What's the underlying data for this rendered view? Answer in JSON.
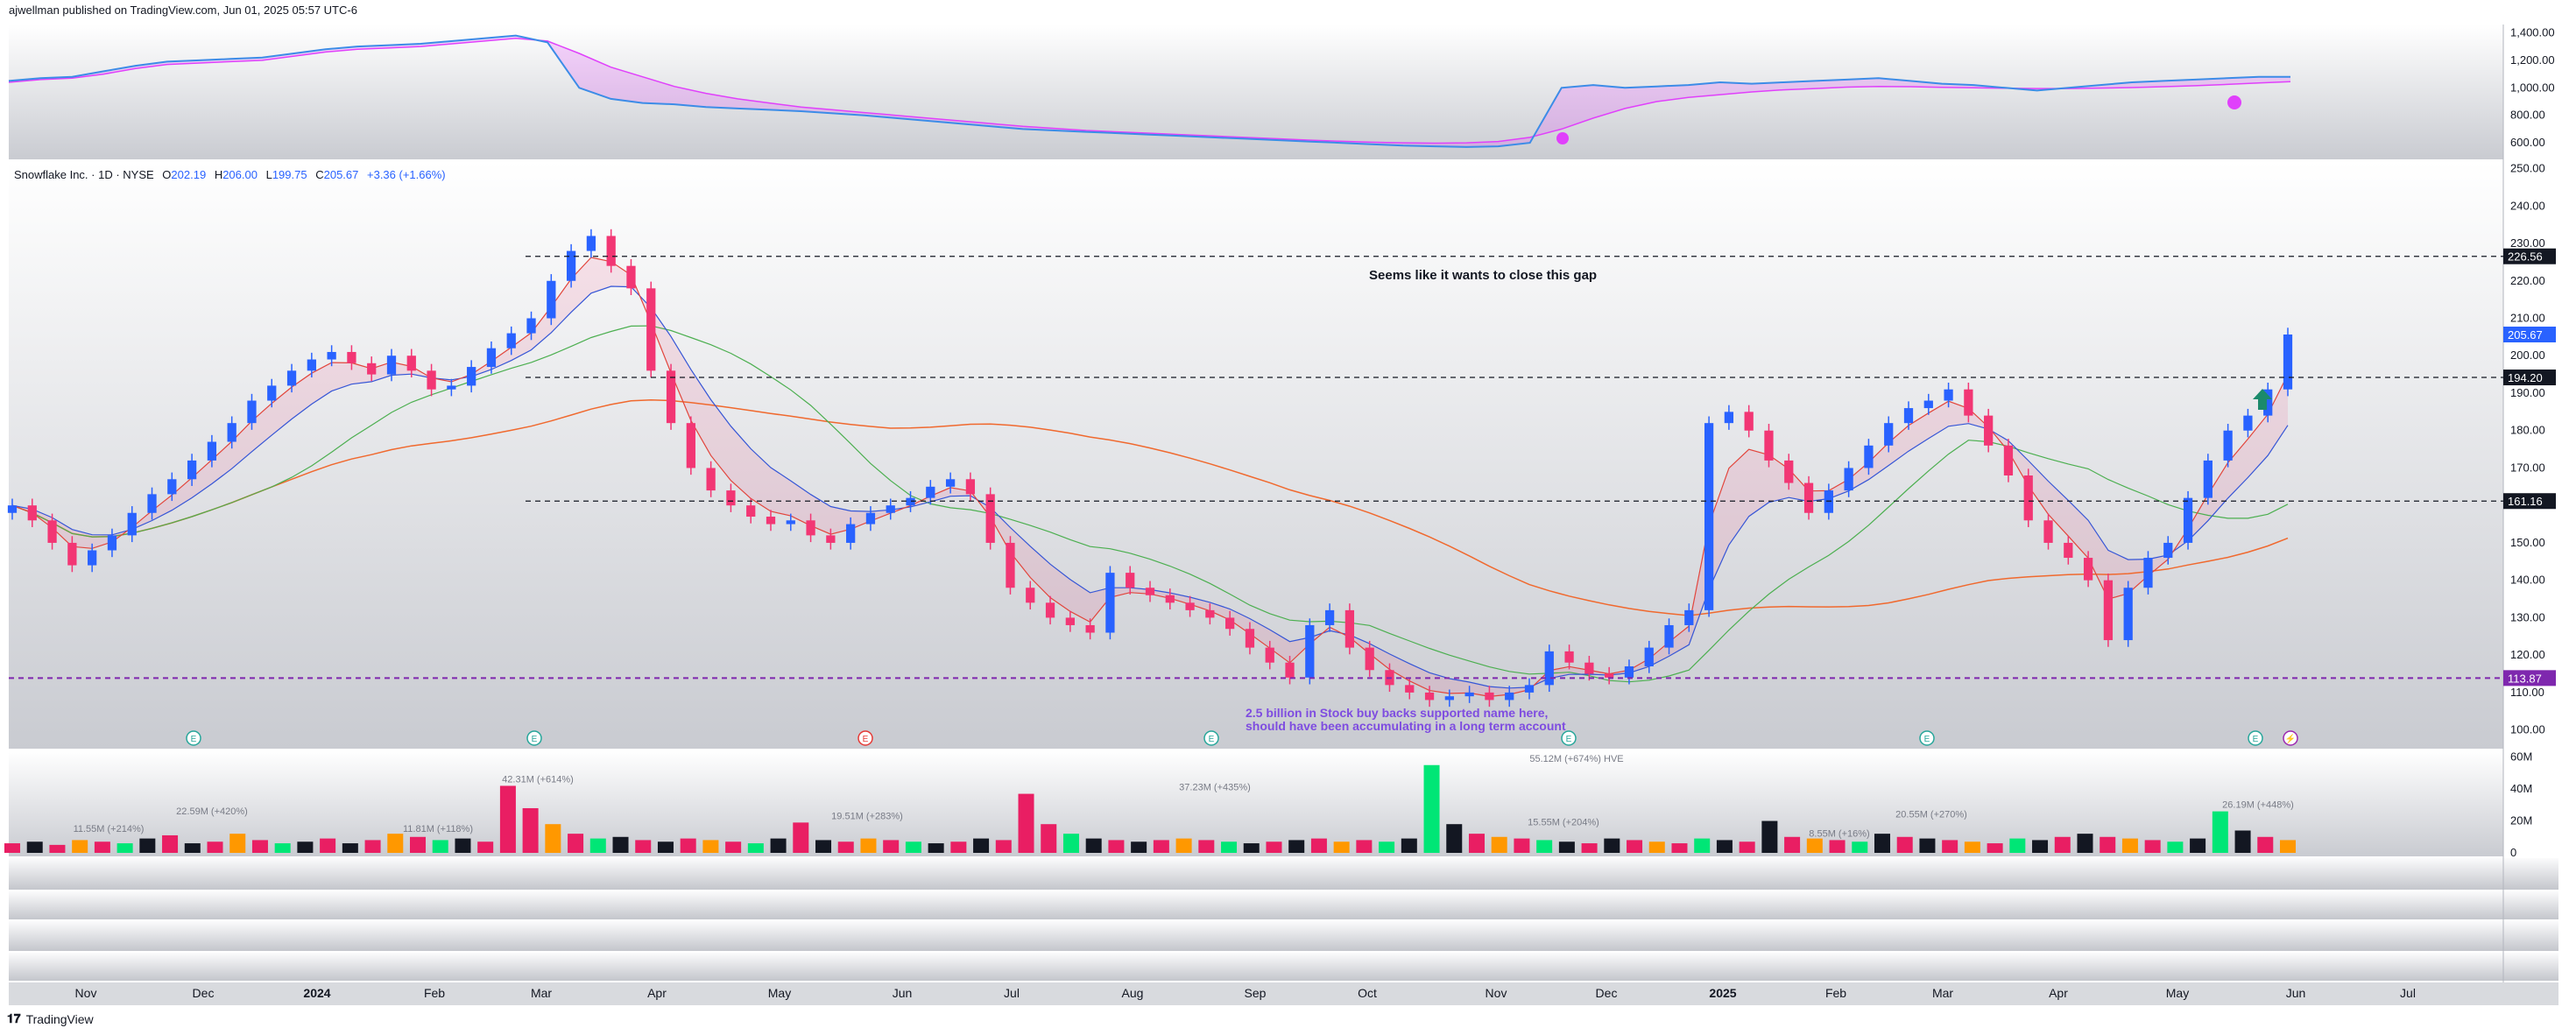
{
  "header": {
    "published": "ajwellman published on TradingView.com, Jun 01, 2025 05:57 UTC-6"
  },
  "footer": {
    "brand": "TradingView"
  },
  "legend": {
    "symbol": "Snowflake Inc. · 1D · NYSE",
    "o_label": "O",
    "o": "202.19",
    "h_label": "H",
    "h": "206.00",
    "l_label": "L",
    "l": "199.75",
    "c_label": "C",
    "c": "205.67",
    "change": "+3.36 (+1.66%)"
  },
  "annotations": {
    "gap_note": "Seems like it wants to close this gap",
    "buyback_line1": "2.5 billion in Stock buy backs supported name here,",
    "buyback_line2": "should have been accumulating in a long term account"
  },
  "colors": {
    "up": "#2962ff",
    "down": "#f23674",
    "ema_fast": "#e2453c",
    "ema_mid": "#3656d6",
    "sma_50": "#4caf50",
    "sma_200": "#f0692e",
    "accent": "#7e27ae",
    "top_pane_line": "#3c8ce7",
    "top_pane_ma": "#e040fb"
  },
  "chart_data": [
    {
      "type": "line",
      "title": "",
      "y_ticks": [
        "1,400.00",
        "1,200.00",
        "1,000.00",
        "800.00",
        "600.00"
      ],
      "ylim": [
        480,
        1460
      ],
      "series": [
        {
          "values": [
            1050,
            1070,
            1080,
            1120,
            1160,
            1190,
            1200,
            1210,
            1220,
            1250,
            1280,
            1300,
            1310,
            1320,
            1340,
            1360,
            1380,
            1330,
            1000,
            920,
            890,
            880,
            860,
            850,
            840,
            830,
            815,
            800,
            780,
            760,
            740,
            720,
            700,
            690,
            680,
            670,
            660,
            650,
            640,
            630,
            620,
            610,
            600,
            590,
            580,
            575,
            570,
            575,
            600,
            1000,
            1020,
            1000,
            1010,
            1020,
            1040,
            1030,
            1040,
            1050,
            1060,
            1070,
            1050,
            1030,
            1020,
            1000,
            980,
            1000,
            1020,
            1040,
            1050,
            1060,
            1070,
            1080,
            1080
          ]
        },
        {
          "values": [
            1040,
            1060,
            1070,
            1100,
            1140,
            1170,
            1180,
            1190,
            1200,
            1230,
            1260,
            1280,
            1290,
            1300,
            1320,
            1340,
            1360,
            1340,
            1250,
            1150,
            1080,
            1010,
            960,
            920,
            890,
            860,
            840,
            820,
            800,
            780,
            760,
            740,
            720,
            705,
            690,
            680,
            670,
            660,
            650,
            640,
            630,
            620,
            612,
            605,
            600,
            598,
            600,
            610,
            640,
            700,
            780,
            850,
            900,
            930,
            950,
            970,
            985,
            995,
            1005,
            1010,
            1008,
            1004,
            1000,
            997,
            995,
            995,
            998,
            1002,
            1008,
            1015,
            1025,
            1035,
            1045
          ]
        }
      ]
    },
    {
      "type": "candlestick",
      "title": "",
      "ylim": [
        95,
        252
      ],
      "y_ticks": [
        "250.00",
        "240.00",
        "230.00",
        "220.00",
        "210.00",
        "200.00",
        "190.00",
        "180.00",
        "170.00",
        "160.00",
        "150.00",
        "140.00",
        "130.00",
        "120.00",
        "110.00",
        "100.00"
      ],
      "x_labels": [
        "Nov",
        "Dec",
        "2024",
        "Feb",
        "Mar",
        "Apr",
        "May",
        "Jun",
        "Jul",
        "Aug",
        "Sep",
        "Oct",
        "Nov",
        "Dec",
        "2025",
        "Feb",
        "Mar",
        "Apr",
        "May",
        "Jun",
        "Jul"
      ],
      "closes": [
        160,
        156,
        150,
        144,
        148,
        152,
        158,
        163,
        167,
        172,
        177,
        182,
        188,
        192,
        196,
        199,
        201,
        198,
        195,
        200,
        196,
        191,
        192,
        197,
        202,
        206,
        210,
        220,
        228,
        232,
        224,
        218,
        196,
        182,
        170,
        164,
        160,
        157,
        155,
        156,
        152,
        150,
        155,
        158,
        160,
        162,
        165,
        167,
        163,
        150,
        138,
        134,
        130,
        128,
        126,
        142,
        138,
        136,
        134,
        132,
        130,
        127,
        122,
        118,
        114,
        128,
        132,
        122,
        116,
        112,
        110,
        108,
        109,
        110,
        108,
        110,
        112,
        121,
        118,
        115,
        114,
        117,
        122,
        128,
        132,
        182,
        185,
        180,
        172,
        166,
        158,
        164,
        170,
        176,
        182,
        186,
        188,
        191,
        184,
        176,
        168,
        156,
        150,
        146,
        140,
        124,
        138,
        146,
        150,
        162,
        172,
        180,
        184,
        191,
        205.67
      ],
      "price_levels": [
        {
          "value": "226.56",
          "style": "dashed"
        },
        {
          "value": "194.20",
          "style": "dashed"
        },
        {
          "value": "161.16",
          "style": "dashed"
        },
        {
          "value": "113.87",
          "style": "dashed-accent"
        }
      ],
      "last_price": "205.67",
      "event_markers": [
        {
          "label": "E",
          "index": 0
        },
        {
          "label": "E",
          "index": 1
        },
        {
          "label": "E",
          "index": 2
        },
        {
          "label": "E",
          "index": 3
        },
        {
          "label": "E",
          "index": 4
        },
        {
          "label": "E",
          "index": 5
        },
        {
          "label": "E",
          "index": 6
        },
        {
          "label": "⚡",
          "index": 7
        }
      ]
    },
    {
      "type": "bar",
      "title": "",
      "y_ticks": [
        "60M",
        "40M",
        "20M",
        "0"
      ],
      "ylim": [
        0,
        62
      ],
      "annotations": [
        "11.55M (+214%)",
        "22.59M (+420%)",
        "11.81M (+118%)",
        "42.31M (+614%)",
        "19.51M (+283%)",
        "37.23M (+435%)",
        "55.12M (+674%) HVE",
        "15.55M (+204%)",
        "8.55M (+16%)",
        "20.55M (+270%)",
        "26.19M (+448%)"
      ],
      "values": [
        6,
        7,
        5,
        8,
        7,
        6,
        9,
        11,
        6,
        7,
        12,
        8,
        6,
        7,
        9,
        6,
        8,
        12,
        10,
        8,
        9,
        7,
        42,
        28,
        18,
        12,
        9,
        10,
        8,
        7,
        9,
        8,
        7,
        6,
        9,
        19,
        8,
        7,
        9,
        8,
        7,
        6,
        7,
        9,
        8,
        37,
        18,
        12,
        9,
        8,
        7,
        8,
        9,
        8,
        7,
        6,
        7,
        8,
        9,
        7,
        8,
        7,
        9,
        55,
        18,
        12,
        10,
        9,
        8,
        7,
        6,
        9,
        8,
        7,
        6,
        9,
        8,
        7,
        20,
        10,
        9,
        8,
        7,
        12,
        10,
        9,
        8,
        7,
        6,
        9,
        8,
        10,
        12,
        10,
        9,
        8,
        7,
        9,
        26,
        14,
        10,
        8
      ]
    }
  ]
}
